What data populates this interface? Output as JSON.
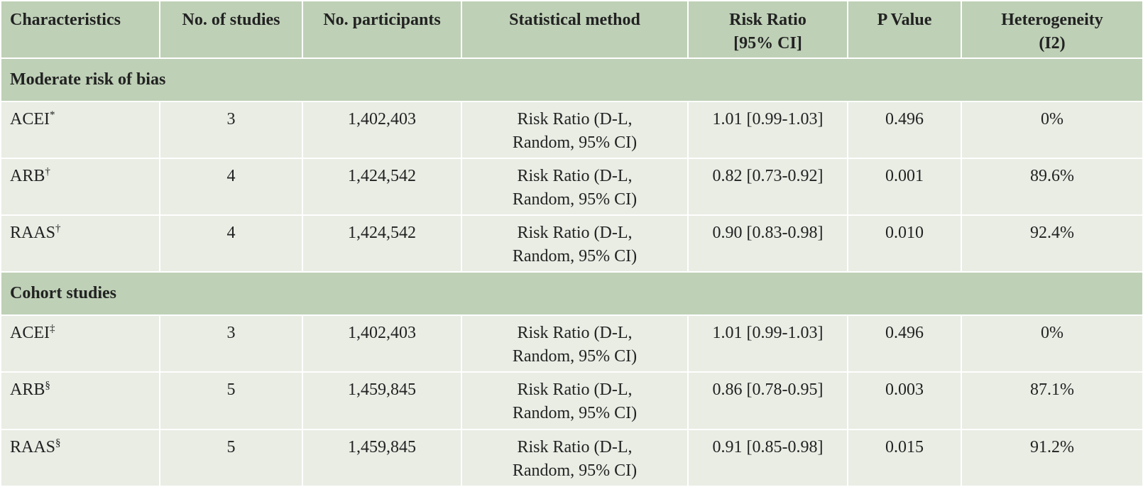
{
  "table": {
    "headers": [
      [
        "Characteristics"
      ],
      [
        "No. of studies"
      ],
      [
        "No. participants"
      ],
      [
        "Statistical method"
      ],
      [
        "Risk Ratio",
        "[95% CI]"
      ],
      [
        "P Value"
      ],
      [
        "Heterogeneity",
        "(I2)"
      ]
    ],
    "groups": [
      {
        "title": "Moderate risk of bias",
        "rows": [
          {
            "label": "ACEI",
            "mark": "*",
            "studies": "3",
            "participants": "1,402,403",
            "method": [
              "Risk Ratio (D-L,",
              "Random, 95% CI)"
            ],
            "rr": "1.01 [0.99-1.03]",
            "p": "0.496",
            "het": "0%"
          },
          {
            "label": "ARB",
            "mark": "†",
            "studies": "4",
            "participants": "1,424,542",
            "method": [
              "Risk Ratio (D-L,",
              "Random, 95% CI)"
            ],
            "rr": "0.82 [0.73-0.92]",
            "p": "0.001",
            "het": "89.6%"
          },
          {
            "label": "RAAS",
            "mark": "†",
            "studies": "4",
            "participants": "1,424,542",
            "method": [
              "Risk Ratio (D-L,",
              "Random, 95% CI)"
            ],
            "rr": "0.90 [0.83-0.98]",
            "p": "0.010",
            "het": "92.4%"
          }
        ]
      },
      {
        "title": "Cohort studies",
        "rows": [
          {
            "label": "ACEI",
            "mark": "‡",
            "studies": "3",
            "participants": "1,402,403",
            "method": [
              "Risk Ratio (D-L,",
              "Random, 95% CI)"
            ],
            "rr": "1.01 [0.99-1.03]",
            "p": "0.496",
            "het": "0%"
          },
          {
            "label": "ARB",
            "mark": "§",
            "studies": "5",
            "participants": "1,459,845",
            "method": [
              "Risk Ratio (D-L,",
              "Random, 95% CI)"
            ],
            "rr": "0.86 [0.78-0.95]",
            "p": "0.003",
            "het": "87.1%"
          },
          {
            "label": "RAAS",
            "mark": "§",
            "studies": "5",
            "participants": "1,459,845",
            "method": [
              "Risk Ratio (D-L,",
              "Random, 95% CI)"
            ],
            "rr": "0.91 [0.85-0.98]",
            "p": "0.015",
            "het": "91.2%"
          }
        ]
      }
    ]
  }
}
